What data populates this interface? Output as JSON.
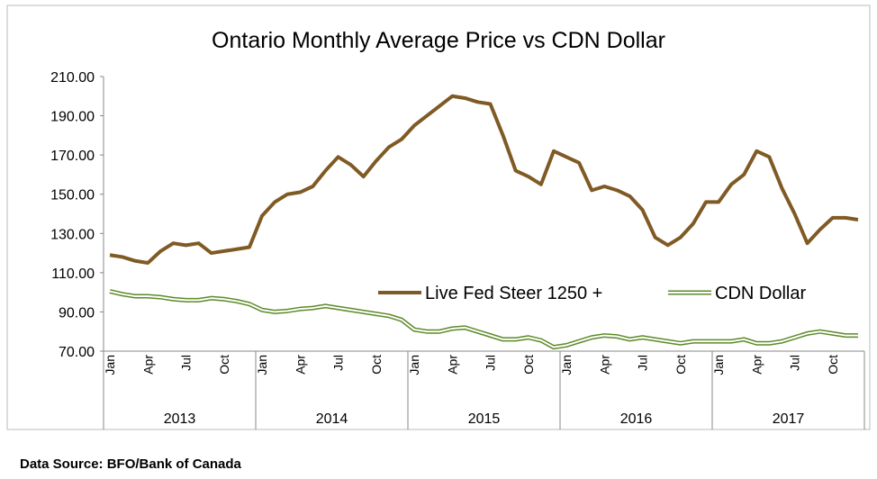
{
  "chart_data": {
    "type": "line",
    "title": "Ontario Monthly Average Price vs CDN Dollar",
    "categories": [
      "Jan",
      null,
      null,
      "Apr",
      null,
      null,
      "Jul",
      null,
      null,
      "Oct",
      null,
      null,
      "Jan",
      null,
      null,
      "Apr",
      null,
      null,
      "Jul",
      null,
      null,
      "Oct",
      null,
      null,
      "Jan",
      null,
      null,
      "Apr",
      null,
      null,
      "Jul",
      null,
      null,
      "Oct",
      null,
      null,
      "Jan",
      null,
      null,
      "Apr",
      null,
      null,
      "Jul",
      null,
      null,
      "Oct",
      null,
      null,
      "Jan",
      null,
      null,
      "Apr",
      null,
      null,
      "Jul",
      null,
      null,
      "Oct",
      null,
      null
    ],
    "years": [
      "2013",
      "2014",
      "2015",
      "2016",
      "2017"
    ],
    "series": [
      {
        "name": "Live Fed Steer 1250 +",
        "color": "#7f5a24",
        "values": [
          119,
          118,
          116,
          115,
          121,
          125,
          124,
          125,
          120,
          121,
          122,
          123,
          139,
          146,
          150,
          151,
          154,
          162,
          169,
          165,
          159,
          167,
          174,
          178,
          185,
          190,
          195,
          200,
          199,
          197,
          196,
          180,
          162,
          159,
          155,
          172,
          169,
          166,
          152,
          154,
          152,
          149,
          142,
          128,
          124,
          128,
          135,
          146,
          146,
          155,
          160,
          172,
          169,
          153,
          140,
          125,
          132,
          138,
          138,
          137
        ]
      },
      {
        "name": "CDN  Dollar",
        "color": "#5e8a2a",
        "values": [
          100.5,
          99,
          98,
          98,
          97.5,
          96.5,
          96,
          96,
          97,
          96.5,
          95.5,
          94,
          91,
          90,
          90.5,
          91.5,
          92,
          93,
          92,
          91,
          90,
          89,
          88,
          86,
          81,
          80,
          80,
          81.5,
          82,
          80,
          78,
          76,
          76,
          77,
          75.5,
          72,
          73,
          75,
          77,
          78,
          77.5,
          76,
          77,
          76,
          75,
          74,
          75,
          75,
          75,
          75,
          76,
          74,
          74,
          75,
          77,
          79,
          80,
          79,
          78,
          78
        ]
      }
    ],
    "ylim": [
      70,
      210
    ],
    "yticks": [
      {
        "value": 70,
        "label": "70.00"
      },
      {
        "value": 90,
        "label": "90.00"
      },
      {
        "value": 110,
        "label": "110.00"
      },
      {
        "value": 130,
        "label": "130.00"
      },
      {
        "value": 150,
        "label": "150.00"
      },
      {
        "value": 170,
        "label": "170.00"
      },
      {
        "value": 190,
        "label": "190.00"
      },
      {
        "value": 210,
        "label": "210.00"
      }
    ],
    "source": "Data Source: BFO/Bank of Canada"
  }
}
